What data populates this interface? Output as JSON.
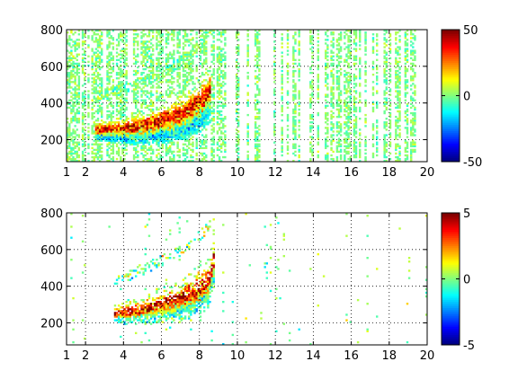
{
  "colors": {
    "colormap": "jet",
    "axis": "#000000",
    "grid": "#000000",
    "background": "#ffffff"
  },
  "chart_data": [
    {
      "type": "heatmap",
      "title": "",
      "xlabel": "",
      "ylabel": "",
      "xlim": [
        1,
        20
      ],
      "ylim": [
        80,
        800
      ],
      "grid": true,
      "x_ticks": [
        "1",
        "2",
        "4",
        "6",
        "8",
        "10",
        "12",
        "14",
        "16",
        "18",
        "20"
      ],
      "x_tick_values": [
        1,
        2,
        4,
        6,
        8,
        10,
        12,
        14,
        16,
        18,
        20
      ],
      "y_ticks": [
        "200",
        "400",
        "600",
        "800"
      ],
      "y_tick_values": [
        200,
        400,
        600,
        800
      ],
      "colorbar": {
        "min": -50,
        "max": 50,
        "ticks": [
          "50",
          "0",
          "-50"
        ],
        "tick_values": [
          50,
          0,
          -50
        ]
      },
      "pattern": {
        "description": "dense near-zero noise everywhere with a positive/negative dispersive ridge",
        "noise_level": 6,
        "ridge": {
          "x_start": 2.5,
          "x_end": 8.5,
          "y_points": [
            [
              2.5,
              250
            ],
            [
              4,
              255
            ],
            [
              5,
              270
            ],
            [
              6,
              295
            ],
            [
              7,
              330
            ],
            [
              8,
              390
            ],
            [
              8.6,
              460
            ]
          ],
          "peak_value": 45,
          "negative_offset": -30
        },
        "coverage": 0.55
      }
    },
    {
      "type": "heatmap",
      "title": "",
      "xlabel": "",
      "ylabel": "",
      "xlim": [
        1,
        20
      ],
      "ylim": [
        80,
        800
      ],
      "grid": true,
      "x_ticks": [
        "1",
        "2",
        "4",
        "6",
        "8",
        "10",
        "12",
        "14",
        "16",
        "18",
        "20"
      ],
      "x_tick_values": [
        1,
        2,
        4,
        6,
        8,
        10,
        12,
        14,
        16,
        18,
        20
      ],
      "y_ticks": [
        "200",
        "400",
        "600",
        "800"
      ],
      "y_tick_values": [
        200,
        400,
        600,
        800
      ],
      "colorbar": {
        "min": -5,
        "max": 5,
        "ticks": [
          "5",
          "0",
          "-5"
        ],
        "tick_values": [
          5,
          0,
          -5
        ]
      },
      "pattern": {
        "description": "sparse data concentrated along a dispersive ridge between x=3.5 and x=9",
        "noise_level": 1,
        "ridge": {
          "x_start": 3.5,
          "x_end": 9,
          "y_points": [
            [
              3.5,
              250
            ],
            [
              4.5,
              265
            ],
            [
              5.5,
              285
            ],
            [
              6.5,
              310
            ],
            [
              7.5,
              350
            ],
            [
              8.5,
              420
            ],
            [
              8.8,
              560
            ]
          ],
          "peak_value": 4.5,
          "negative_offset": -2
        },
        "coverage": 0.04
      }
    }
  ]
}
